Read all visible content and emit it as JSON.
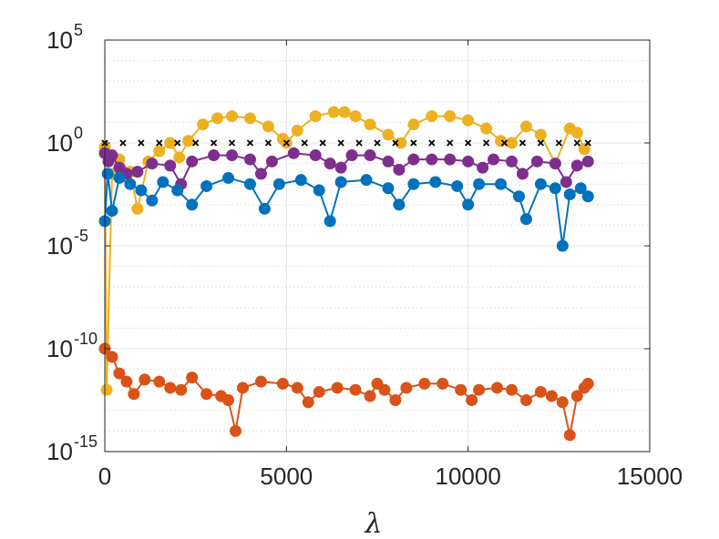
{
  "chart_data": {
    "type": "scatter",
    "title": "",
    "xlabel": "λ",
    "ylabel": "",
    "xlim": [
      0,
      15000
    ],
    "ylim_exponent": [
      -15,
      5
    ],
    "yscale": "log",
    "grid": true,
    "minor_grid": true,
    "legend": "none",
    "x_ticks": [
      "0",
      "5000",
      "10000",
      "15000"
    ],
    "y_ticks": [
      {
        "base": "10",
        "exp": "-15"
      },
      {
        "base": "10",
        "exp": "-10"
      },
      {
        "base": "10",
        "exp": "-5"
      },
      {
        "base": "10",
        "exp": "0"
      },
      {
        "base": "10",
        "exp": "5"
      }
    ],
    "series": [
      {
        "color": "#EDB120",
        "marker": "circle",
        "points": [
          [
            0,
            -0.2
          ],
          [
            50,
            -12.0
          ],
          [
            200,
            -1.5
          ],
          [
            400,
            -0.8
          ],
          [
            700,
            -1.4
          ],
          [
            900,
            -3.2
          ],
          [
            1200,
            -0.9
          ],
          [
            1500,
            -0.4
          ],
          [
            1800,
            0.0
          ],
          [
            2050,
            -0.7
          ],
          [
            2300,
            0.1
          ],
          [
            2700,
            0.9
          ],
          [
            3100,
            1.2
          ],
          [
            3500,
            1.3
          ],
          [
            4000,
            1.2
          ],
          [
            4500,
            0.8
          ],
          [
            4900,
            0.2
          ],
          [
            5000,
            0.0
          ],
          [
            5300,
            0.6
          ],
          [
            5800,
            1.3
          ],
          [
            6300,
            1.5
          ],
          [
            6600,
            1.5
          ],
          [
            6900,
            1.3
          ],
          [
            7300,
            0.9
          ],
          [
            7800,
            0.4
          ],
          [
            8150,
            0.0
          ],
          [
            8500,
            0.9
          ],
          [
            9000,
            1.3
          ],
          [
            9500,
            1.3
          ],
          [
            10000,
            1.1
          ],
          [
            10500,
            0.7
          ],
          [
            10900,
            0.1
          ],
          [
            11200,
            0.0
          ],
          [
            11600,
            0.8
          ],
          [
            12000,
            0.4
          ],
          [
            12400,
            -1.0
          ],
          [
            12800,
            0.7
          ],
          [
            13000,
            0.5
          ],
          [
            13200,
            -0.3
          ]
        ]
      },
      {
        "color": "#000000",
        "marker": "x",
        "points": [
          [
            0,
            0.0
          ],
          [
            500,
            0.0
          ],
          [
            1000,
            0.0
          ],
          [
            1500,
            0.0
          ],
          [
            2000,
            0.0
          ],
          [
            2500,
            0.0
          ],
          [
            3000,
            0.0
          ],
          [
            3500,
            0.0
          ],
          [
            4000,
            0.0
          ],
          [
            4500,
            0.0
          ],
          [
            5000,
            0.0
          ],
          [
            5500,
            0.0
          ],
          [
            6000,
            0.0
          ],
          [
            6500,
            0.0
          ],
          [
            7000,
            0.0
          ],
          [
            7500,
            0.0
          ],
          [
            8000,
            0.0
          ],
          [
            8500,
            0.0
          ],
          [
            9000,
            0.0
          ],
          [
            9500,
            0.0
          ],
          [
            10000,
            0.0
          ],
          [
            10500,
            0.0
          ],
          [
            11000,
            0.0
          ],
          [
            11500,
            0.0
          ],
          [
            12000,
            0.0
          ],
          [
            12500,
            0.0
          ],
          [
            13000,
            0.0
          ],
          [
            13300,
            0.0
          ]
        ]
      },
      {
        "color": "#7E2F8E",
        "marker": "circle",
        "points": [
          [
            0,
            -0.5
          ],
          [
            100,
            -0.9
          ],
          [
            200,
            -0.6
          ],
          [
            400,
            -1.2
          ],
          [
            600,
            -1.5
          ],
          [
            900,
            -1.4
          ],
          [
            1300,
            -1.0
          ],
          [
            1800,
            -1.1
          ],
          [
            2100,
            -2.0
          ],
          [
            2400,
            -0.9
          ],
          [
            3000,
            -0.6
          ],
          [
            3500,
            -0.6
          ],
          [
            4000,
            -0.8
          ],
          [
            4300,
            -1.5
          ],
          [
            4600,
            -0.9
          ],
          [
            5200,
            -0.5
          ],
          [
            5800,
            -0.6
          ],
          [
            6200,
            -1.0
          ],
          [
            6500,
            -1.2
          ],
          [
            6800,
            -0.6
          ],
          [
            7300,
            -0.6
          ],
          [
            7800,
            -0.9
          ],
          [
            8100,
            -1.3
          ],
          [
            8500,
            -0.8
          ],
          [
            9000,
            -0.8
          ],
          [
            9500,
            -0.8
          ],
          [
            10000,
            -0.9
          ],
          [
            10400,
            -1.2
          ],
          [
            10700,
            -0.8
          ],
          [
            11200,
            -0.9
          ],
          [
            11500,
            -1.5
          ],
          [
            11900,
            -0.9
          ],
          [
            12400,
            -1.0
          ],
          [
            12700,
            -1.9
          ],
          [
            13000,
            -1.1
          ],
          [
            13300,
            -0.9
          ]
        ]
      },
      {
        "color": "#0072BD",
        "marker": "circle",
        "points": [
          [
            0,
            -3.8
          ],
          [
            80,
            -1.5
          ],
          [
            200,
            -3.3
          ],
          [
            400,
            -1.7
          ],
          [
            700,
            -2.0
          ],
          [
            1000,
            -2.3
          ],
          [
            1300,
            -2.8
          ],
          [
            1600,
            -1.9
          ],
          [
            2000,
            -2.3
          ],
          [
            2400,
            -3.0
          ],
          [
            2800,
            -2.1
          ],
          [
            3400,
            -1.7
          ],
          [
            4000,
            -2.0
          ],
          [
            4400,
            -3.2
          ],
          [
            4800,
            -2.0
          ],
          [
            5400,
            -1.8
          ],
          [
            5900,
            -2.3
          ],
          [
            6200,
            -3.8
          ],
          [
            6500,
            -1.9
          ],
          [
            7200,
            -1.8
          ],
          [
            7800,
            -2.2
          ],
          [
            8100,
            -3.0
          ],
          [
            8500,
            -2.0
          ],
          [
            9100,
            -1.9
          ],
          [
            9700,
            -2.1
          ],
          [
            10000,
            -3.0
          ],
          [
            10300,
            -2.0
          ],
          [
            10900,
            -2.0
          ],
          [
            11400,
            -2.6
          ],
          [
            11600,
            -3.7
          ],
          [
            12000,
            -2.0
          ],
          [
            12400,
            -2.2
          ],
          [
            12600,
            -5.0
          ],
          [
            12800,
            -2.5
          ],
          [
            13100,
            -2.2
          ],
          [
            13300,
            -2.6
          ]
        ]
      },
      {
        "color": "#D95319",
        "marker": "circle",
        "points": [
          [
            0,
            -10.0
          ],
          [
            200,
            -10.4
          ],
          [
            400,
            -11.2
          ],
          [
            600,
            -11.6
          ],
          [
            800,
            -12.2
          ],
          [
            1100,
            -11.5
          ],
          [
            1500,
            -11.6
          ],
          [
            1800,
            -11.9
          ],
          [
            2100,
            -12.0
          ],
          [
            2400,
            -11.4
          ],
          [
            2800,
            -12.2
          ],
          [
            3200,
            -12.3
          ],
          [
            3400,
            -12.5
          ],
          [
            3600,
            -14.0
          ],
          [
            3800,
            -11.9
          ],
          [
            4300,
            -11.6
          ],
          [
            4900,
            -11.7
          ],
          [
            5300,
            -11.9
          ],
          [
            5600,
            -12.6
          ],
          [
            5900,
            -12.1
          ],
          [
            6400,
            -11.9
          ],
          [
            6900,
            -12.0
          ],
          [
            7300,
            -12.3
          ],
          [
            7500,
            -11.7
          ],
          [
            7700,
            -12.0
          ],
          [
            8000,
            -12.5
          ],
          [
            8300,
            -11.9
          ],
          [
            8800,
            -11.7
          ],
          [
            9300,
            -11.7
          ],
          [
            9800,
            -12.0
          ],
          [
            10100,
            -12.5
          ],
          [
            10300,
            -12.0
          ],
          [
            10800,
            -11.9
          ],
          [
            11200,
            -12.0
          ],
          [
            11600,
            -12.5
          ],
          [
            12000,
            -12.1
          ],
          [
            12300,
            -12.3
          ],
          [
            12600,
            -12.6
          ],
          [
            12800,
            -14.2
          ],
          [
            13000,
            -12.3
          ],
          [
            13200,
            -11.9
          ],
          [
            13300,
            -11.7
          ]
        ]
      }
    ]
  }
}
